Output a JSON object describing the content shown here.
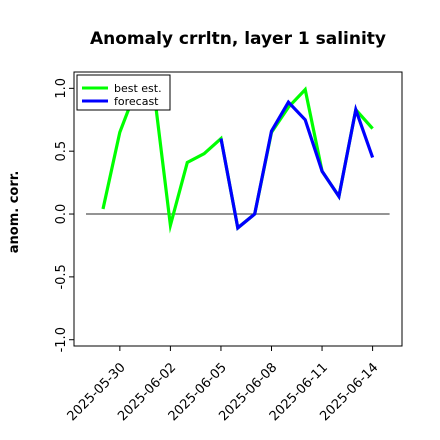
{
  "chart_data": {
    "type": "line",
    "title": "Anomaly crrltn, layer 1 salinity",
    "ylabel": "anom. corr.",
    "xlabel": "",
    "ylim": [
      -1.05,
      1.13
    ],
    "yticks": [
      {
        "value": 1.0,
        "label": "1.0"
      },
      {
        "value": 0.5,
        "label": "0.5"
      },
      {
        "value": 0.0,
        "label": "0.0"
      },
      {
        "value": -0.5,
        "label": "-0.5"
      },
      {
        "value": -1.0,
        "label": "-1.0"
      }
    ],
    "x_dates": [
      "2025-05-29",
      "2025-05-30",
      "2025-05-31",
      "2025-06-01",
      "2025-06-02",
      "2025-06-03",
      "2025-06-04",
      "2025-06-05",
      "2025-06-06",
      "2025-06-07",
      "2025-06-08",
      "2025-06-09",
      "2025-06-10",
      "2025-06-11",
      "2025-06-12",
      "2025-06-13",
      "2025-06-14"
    ],
    "xticks": [
      {
        "date": "2025-05-30",
        "label": "2025-05-30",
        "color": "#000000"
      },
      {
        "date": "2025-06-02",
        "label": "2025-06-02",
        "color": "#000000"
      },
      {
        "date": "2025-06-05",
        "label": "2025-06-05",
        "color": "#228B22"
      },
      {
        "date": "2025-06-08",
        "label": "2025-06-08",
        "color": "#000000"
      },
      {
        "date": "2025-06-11",
        "label": "2025-06-11",
        "color": "#000000"
      },
      {
        "date": "2025-06-14",
        "label": "2025-06-14",
        "color": "#000000"
      }
    ],
    "series": [
      {
        "name": "best est.",
        "color": "#00ff00",
        "values": [
          0.04,
          0.65,
          1.0,
          1.0,
          -0.09,
          0.41,
          0.48,
          0.6,
          -0.11,
          0.0,
          0.65,
          0.85,
          0.99,
          0.34,
          0.14,
          0.83,
          0.68
        ]
      },
      {
        "name": "forecast",
        "color": "#0000ff",
        "values": [
          null,
          null,
          null,
          null,
          null,
          null,
          null,
          0.6,
          -0.11,
          0.0,
          0.66,
          0.89,
          0.75,
          0.34,
          0.14,
          0.83,
          0.45
        ]
      }
    ],
    "reference_line": {
      "value": 0.0,
      "color": "#555555"
    },
    "legend": {
      "position": "top-left"
    },
    "grid": false
  }
}
